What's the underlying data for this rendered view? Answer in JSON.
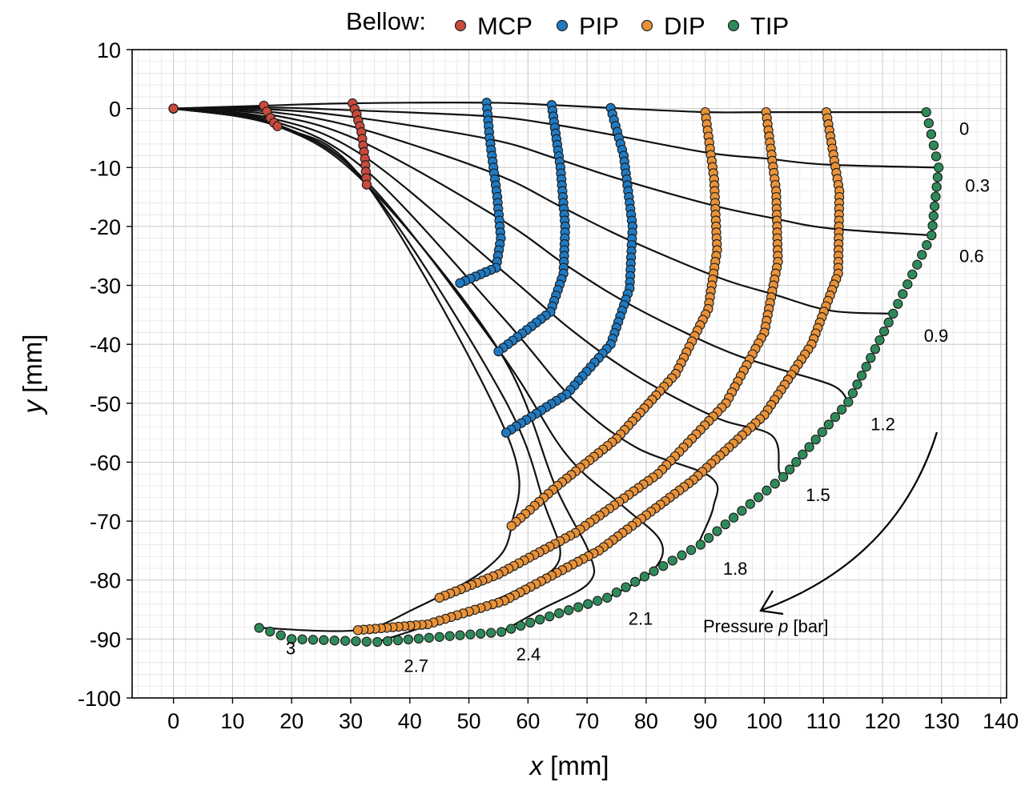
{
  "legend": {
    "title": "Bellow:",
    "items": [
      {
        "label": "MCP",
        "color": "#c94a3c"
      },
      {
        "label": "PIP",
        "color": "#1f7ac2"
      },
      {
        "label": "DIP",
        "color": "#e8923a"
      },
      {
        "label": "TIP",
        "color": "#2f8a5a"
      }
    ]
  },
  "annotation": {
    "text": "Pressure p [bar]",
    "prefix": "Pressure ",
    "var": "p",
    "suffix": " [bar]"
  },
  "chart_data": {
    "type": "scatter",
    "title": "",
    "xlabel": {
      "var": "x",
      "unit": " [mm]"
    },
    "ylabel": {
      "var": "y",
      "unit": " [mm]"
    },
    "xlim": [
      -7,
      141
    ],
    "ylim": [
      -100,
      10
    ],
    "x_ticks": [
      0,
      10,
      20,
      30,
      40,
      50,
      60,
      70,
      80,
      90,
      100,
      110,
      120,
      130,
      140
    ],
    "y_ticks": [
      10,
      0,
      -10,
      -20,
      -30,
      -40,
      -50,
      -60,
      -70,
      -80,
      -90,
      -100
    ],
    "grid": true,
    "minor_grid": true,
    "legend_position": "top-center",
    "pressures": [
      "0",
      "0.3",
      "0.6",
      "0.9",
      "1.2",
      "1.5",
      "1.8",
      "2.1",
      "2.4",
      "2.7",
      "3"
    ],
    "finger_configurations": [
      {
        "pressure": "0",
        "label_pos": [
          133,
          -3.4
        ],
        "points": [
          [
            0,
            0
          ],
          [
            15.5,
            0.5
          ],
          [
            30.4,
            0.9
          ],
          [
            53.1,
            1.0
          ],
          [
            64.1,
            0.6
          ],
          [
            74.1,
            0.1
          ],
          [
            90.1,
            -0.6
          ],
          [
            100.4,
            -0.6
          ],
          [
            110.6,
            -0.6
          ],
          [
            127.5,
            -0.6
          ]
        ]
      },
      {
        "pressure": "0.3",
        "label_pos": [
          134,
          -13
        ],
        "points": [
          [
            0,
            0
          ],
          [
            15.5,
            0.2
          ],
          [
            30.5,
            -0.3
          ],
          [
            53.3,
            -1.3
          ],
          [
            64.3,
            -2.7
          ],
          [
            74.5,
            -4.5
          ],
          [
            90.5,
            -7.5
          ],
          [
            100.5,
            -8.5
          ],
          [
            110.5,
            -9.5
          ],
          [
            129.5,
            -10.0
          ]
        ]
      },
      {
        "pressure": "0.6",
        "label_pos": [
          133,
          -25
        ],
        "points": [
          [
            0,
            0
          ],
          [
            15.6,
            -0.1
          ],
          [
            30.8,
            -1.5
          ],
          [
            53.6,
            -5.2
          ],
          [
            64.8,
            -8.5
          ],
          [
            75.3,
            -11.9
          ],
          [
            91.2,
            -16.4
          ],
          [
            101.0,
            -18.5
          ],
          [
            110.8,
            -20.3
          ],
          [
            128.2,
            -21.5
          ]
        ]
      },
      {
        "pressure": "0.9",
        "label_pos": [
          127,
          -38.5
        ],
        "points": [
          [
            0,
            0
          ],
          [
            15.8,
            -0.5
          ],
          [
            31.2,
            -3.3
          ],
          [
            54.2,
            -11.0
          ],
          [
            65.5,
            -16.6
          ],
          [
            76.4,
            -22.0
          ],
          [
            91.8,
            -28.5
          ],
          [
            101.5,
            -31.5
          ],
          [
            111.3,
            -34.3
          ],
          [
            121.8,
            -34.8
          ]
        ]
      },
      {
        "pressure": "1.2",
        "label_pos": [
          118,
          -53.5
        ],
        "points": [
          [
            0,
            0
          ],
          [
            16.1,
            -1.0
          ],
          [
            31.6,
            -5.5
          ],
          [
            54.9,
            -18.5
          ],
          [
            66.5,
            -26.6
          ],
          [
            77.7,
            -33.5
          ],
          [
            92.0,
            -40.5
          ],
          [
            101.9,
            -44.0
          ],
          [
            111.6,
            -47.0
          ],
          [
            114.2,
            -49.8
          ]
        ]
      },
      {
        "pressure": "1.5",
        "label_pos": [
          107,
          -65.5
        ],
        "points": [
          [
            0,
            0
          ],
          [
            16.4,
            -1.6
          ],
          [
            32.1,
            -8.0
          ],
          [
            55.5,
            -27.4
          ],
          [
            67.4,
            -37.6
          ],
          [
            78.6,
            -45.5
          ],
          [
            92.0,
            -52.5
          ],
          [
            101.3,
            -55.5
          ],
          [
            102.5,
            -61.5
          ],
          [
            103.2,
            -62.5
          ]
        ]
      },
      {
        "pressure": "1.8",
        "label_pos": [
          93,
          -78
        ],
        "points": [
          [
            0,
            0
          ],
          [
            16.8,
            -2.1
          ],
          [
            32.5,
            -10.4
          ],
          [
            55.6,
            -35.3
          ],
          [
            67.6,
            -49.3
          ],
          [
            78.3,
            -57.5
          ],
          [
            90.9,
            -62.5
          ],
          [
            91.4,
            -67.5
          ],
          [
            89.0,
            -73.5
          ],
          [
            89.2,
            -74.0
          ]
        ]
      },
      {
        "pressure": "2.1",
        "label_pos": [
          77,
          -86.5
        ],
        "points": [
          [
            0,
            0
          ],
          [
            17.2,
            -2.6
          ],
          [
            32.8,
            -12.5
          ],
          [
            55.2,
            -41.2
          ],
          [
            66.4,
            -58.6
          ],
          [
            75.8,
            -67.2
          ],
          [
            82.5,
            -73.5
          ],
          [
            81.0,
            -78.5
          ],
          [
            73.5,
            -83.0
          ],
          [
            73.4,
            -83.0
          ]
        ]
      },
      {
        "pressure": "2.4",
        "label_pos": [
          58,
          -92.5
        ],
        "points": [
          [
            0,
            0
          ],
          [
            17.6,
            -3.0
          ],
          [
            32.7,
            -12.9
          ],
          [
            55.2,
            -41.2
          ],
          [
            64.7,
            -64.2
          ],
          [
            70.4,
            -75.5
          ],
          [
            70.3,
            -80.5
          ],
          [
            62.2,
            -85.0
          ],
          [
            55.5,
            -88.8
          ]
        ]
      },
      {
        "pressure": "2.7",
        "label_pos": [
          39,
          -94.5
        ],
        "points": [
          [
            0,
            0
          ],
          [
            17.6,
            -3.0
          ],
          [
            32.7,
            -12.9
          ],
          [
            55.7,
            -48.7
          ],
          [
            62.8,
            -67.2
          ],
          [
            65.3,
            -76.5
          ],
          [
            58.5,
            -81.5
          ],
          [
            46.5,
            -86.5
          ],
          [
            34.5,
            -90.5
          ]
        ]
      },
      {
        "pressure": "3",
        "label_pos": [
          19,
          -91.5
        ],
        "points": [
          [
            0,
            0
          ],
          [
            17.6,
            -3.0
          ],
          [
            32.7,
            -12.9
          ],
          [
            56.3,
            -55.0
          ],
          [
            57.2,
            -70.8
          ],
          [
            53.0,
            -78.0
          ],
          [
            40.5,
            -85.0
          ],
          [
            31.2,
            -88.5
          ],
          [
            14.5,
            -88.1
          ]
        ]
      }
    ],
    "series": [
      {
        "name": "MCP",
        "color": "#c94a3c",
        "tracks": [
          [
            [
              0,
              0
            ],
            [
              0,
              0
            ],
            [
              0,
              0
            ],
            [
              0,
              0
            ]
          ],
          [
            [
              15.3,
              0.5
            ],
            [
              15.8,
              -0.5
            ],
            [
              16.4,
              -1.6
            ],
            [
              17.0,
              -2.4
            ],
            [
              17.6,
              -3.0
            ]
          ],
          [
            [
              30.3,
              0.9
            ],
            [
              31.0,
              -1.0
            ],
            [
              31.8,
              -4.0
            ],
            [
              32.4,
              -8.5
            ],
            [
              32.7,
              -12.9
            ]
          ]
        ]
      },
      {
        "name": "PIP",
        "color": "#1f7ac2",
        "tracks": [
          [
            [
              53.0,
              1.0
            ],
            [
              53.5,
              -5.0
            ],
            [
              54.8,
              -15.0
            ],
            [
              55.4,
              -22.0
            ],
            [
              54.6,
              -27.0
            ],
            [
              48.5,
              -29.6
            ]
          ],
          [
            [
              64.0,
              0.6
            ],
            [
              65.5,
              -10.0
            ],
            [
              66.3,
              -20.0
            ],
            [
              66.0,
              -28.0
            ],
            [
              63.8,
              -34.5
            ],
            [
              55.0,
              -41.2
            ]
          ],
          [
            [
              74.0,
              0.1
            ],
            [
              76.2,
              -8.0
            ],
            [
              77.7,
              -20.0
            ],
            [
              77.2,
              -30.5
            ],
            [
              74.0,
              -40.0
            ],
            [
              66.5,
              -48.5
            ],
            [
              56.3,
              -55.0
            ]
          ]
        ]
      },
      {
        "name": "DIP",
        "color": "#e8923a",
        "tracks": [
          [
            [
              90.0,
              -0.6
            ],
            [
              91.5,
              -12.0
            ],
            [
              92.0,
              -24.0
            ],
            [
              90.5,
              -34.0
            ],
            [
              85.0,
              -45.0
            ],
            [
              75.0,
              -56.0
            ],
            [
              65.0,
              -64.0
            ],
            [
              57.2,
              -70.8
            ]
          ],
          [
            [
              100.3,
              -0.6
            ],
            [
              102.0,
              -14.0
            ],
            [
              102.3,
              -26.0
            ],
            [
              100.0,
              -38.0
            ],
            [
              93.5,
              -50.0
            ],
            [
              82.0,
              -62.0
            ],
            [
              68.0,
              -72.0
            ],
            [
              55.0,
              -79.0
            ],
            [
              45.0,
              -83.0
            ]
          ],
          [
            [
              110.5,
              -0.6
            ],
            [
              112.7,
              -14.0
            ],
            [
              112.5,
              -28.0
            ],
            [
              108.0,
              -40.0
            ],
            [
              100.0,
              -52.0
            ],
            [
              88.0,
              -63.0
            ],
            [
              72.0,
              -75.0
            ],
            [
              56.0,
              -83.5
            ],
            [
              43.0,
              -87.5
            ],
            [
              31.2,
              -88.5
            ]
          ]
        ]
      },
      {
        "name": "TIP",
        "color": "#2f8a5a",
        "tracks": [
          [
            [
              127.4,
              -0.6
            ],
            [
              129.5,
              -10.0
            ],
            [
              128.3,
              -21.5
            ],
            [
              121.8,
              -34.8
            ],
            [
              114.2,
              -49.8
            ],
            [
              103.2,
              -62.5
            ],
            [
              89.2,
              -74.0
            ],
            [
              73.4,
              -83.0
            ],
            [
              55.5,
              -88.8
            ],
            [
              34.5,
              -90.5
            ],
            [
              20.0,
              -90.0
            ],
            [
              14.5,
              -88.1
            ]
          ]
        ]
      }
    ]
  }
}
